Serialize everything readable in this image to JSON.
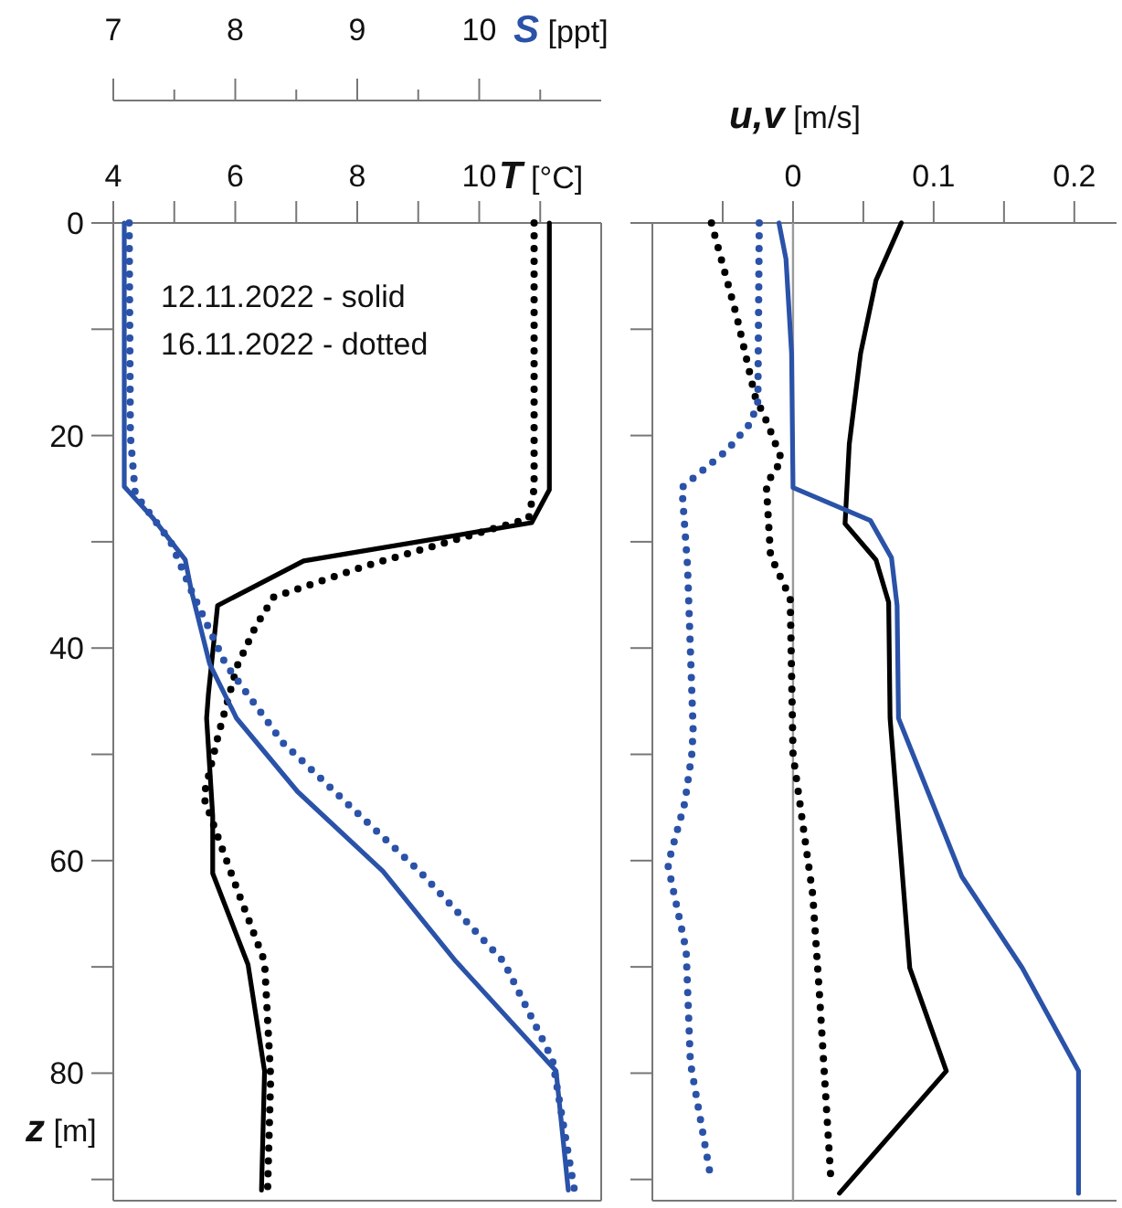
{
  "chart_data": [
    {
      "type": "line",
      "xlabel": "T [°C]",
      "x2label": "S [ppt]",
      "ylabel": "z [m]",
      "xlim": [
        4,
        12
      ],
      "xticks": [
        4,
        {
          "value": 5,
          "label": null
        },
        6,
        {
          "value": 7,
          "label": null
        },
        8,
        {
          "value": 9,
          "label": null
        },
        10,
        {
          "value": 11,
          "label": null
        }
      ],
      "x2lim": [
        7,
        11
      ],
      "x2ticks": [
        7,
        {
          "value": 7.5,
          "label": null
        },
        8,
        {
          "value": 8.5,
          "label": null
        },
        9,
        {
          "value": 9.5,
          "label": null
        },
        10,
        {
          "value": 10.5,
          "label": null
        }
      ],
      "ylim": [
        92,
        0
      ],
      "yticks": [
        0,
        {
          "value": 10,
          "label": null
        },
        20,
        {
          "value": 30,
          "label": null
        },
        40,
        {
          "value": 50,
          "label": null
        },
        60,
        {
          "value": 70,
          "label": null
        },
        80,
        {
          "value": 90,
          "label": null
        }
      ],
      "annotations": [
        "12.11.2022 - solid",
        "16.11.2022 - dotted"
      ],
      "series": [
        {
          "color": "#000000",
          "line_style": "solid",
          "x": [
            11.15,
            11.15,
            10.86,
            7.12,
            5.71,
            5.56,
            5.53,
            5.63,
            5.63,
            6.21,
            6.48,
            6.43
          ],
          "values": [
            0,
            25.1,
            28.2,
            31.8,
            36,
            44.3,
            46.6,
            55.8,
            61.2,
            69.8,
            79.8,
            91
          ]
        },
        {
          "color": "#000000",
          "line_style": "dotted",
          "x": [
            10.9,
            10.9,
            10.81,
            8.12,
            6.63,
            6.33,
            6.03,
            5.73,
            5.48,
            5.73,
            6.03,
            6.48,
            6.58,
            6.53
          ],
          "values": [
            0,
            25,
            27.8,
            32.3,
            35.2,
            38,
            41.7,
            48,
            54,
            58,
            62.7,
            69.5,
            80.4,
            91
          ]
        },
        {
          "color": "#2a52a8",
          "line_style": "solid",
          "axis": "x2",
          "x": [
            7.09,
            7.09,
            7.32,
            7.59,
            7.64,
            7.79,
            8.01,
            8.51,
            9.21,
            9.81,
            10.63,
            10.73
          ],
          "values": [
            0,
            24.8,
            27.7,
            31.7,
            34.6,
            41.5,
            46.6,
            53.5,
            61,
            69.5,
            79.8,
            91
          ]
        },
        {
          "color": "#2a52a8",
          "line_style": "dotted",
          "axis": "x2",
          "x": [
            7.13,
            7.14,
            7.18,
            7.47,
            7.64,
            7.92,
            8.39,
            8.86,
            9.51,
            10.2,
            10.6,
            10.78
          ],
          "values": [
            0,
            20,
            25.5,
            30,
            34.6,
            41.5,
            48.9,
            54,
            61,
            69.5,
            78.7,
            91
          ]
        }
      ]
    },
    {
      "type": "line",
      "xlabel": "u,v [m/s]",
      "tick_labels": "x",
      "xlim": [
        -0.1,
        0.23
      ],
      "xticks": [
        {
          "value": -0.05,
          "label": null
        },
        0,
        {
          "value": 0.05,
          "label": null
        },
        0.1,
        {
          "value": 0.15,
          "label": null
        },
        0.2
      ],
      "ylim": [
        92,
        0
      ],
      "yticks": [
        0,
        {
          "value": 10,
          "label": null
        },
        20,
        {
          "value": 30,
          "label": null
        },
        40,
        {
          "value": 50,
          "label": null
        },
        60,
        {
          "value": 70,
          "label": null
        },
        80,
        {
          "value": 90,
          "label": null
        }
      ],
      "ref_lines": [
        {
          "axis": "x",
          "value": 0,
          "color": "#999999"
        }
      ],
      "series": [
        {
          "color": "#000000",
          "line_style": "solid",
          "x": [
            0.077,
            0.059,
            0.048,
            0.04,
            0.037,
            0.059,
            0.068,
            0.069,
            0.083,
            0.109,
            0.033
          ],
          "values": [
            0,
            5.4,
            12.3,
            20.8,
            28.3,
            31.7,
            35.7,
            46.6,
            70.1,
            79.8,
            91.3
          ]
        },
        {
          "color": "#2a52a8",
          "line_style": "solid",
          "x": [
            -0.01,
            -0.005,
            -0.001,
            0,
            0.055,
            0.07,
            0.074,
            0.075,
            0.12,
            0.163,
            0.203,
            0.203
          ],
          "values": [
            0,
            3.4,
            12.3,
            24.9,
            28,
            31.5,
            36,
            46.6,
            61.5,
            70.1,
            79.8,
            91.3
          ]
        },
        {
          "color": "#000000",
          "line_style": "dotted",
          "x": [
            -0.058,
            -0.04,
            -0.027,
            -0.018,
            -0.008,
            -0.019,
            -0.016,
            -0.002,
            0,
            0.014,
            0.019,
            0.027
          ],
          "values": [
            0,
            8.8,
            16.3,
            18.9,
            22.3,
            24.6,
            31.3,
            35.3,
            50,
            63.2,
            73,
            90.2
          ]
        },
        {
          "color": "#2a52a8",
          "line_style": "dotted",
          "x": [
            -0.024,
            -0.025,
            -0.03,
            -0.047,
            -0.079,
            -0.075,
            -0.071,
            -0.072,
            -0.077,
            -0.089,
            -0.076,
            -0.073,
            -0.058
          ],
          "values": [
            0,
            16.8,
            18.8,
            21.4,
            24.9,
            32.3,
            47.8,
            50,
            54.6,
            60.4,
            68.4,
            79,
            90.2
          ]
        }
      ]
    }
  ]
}
